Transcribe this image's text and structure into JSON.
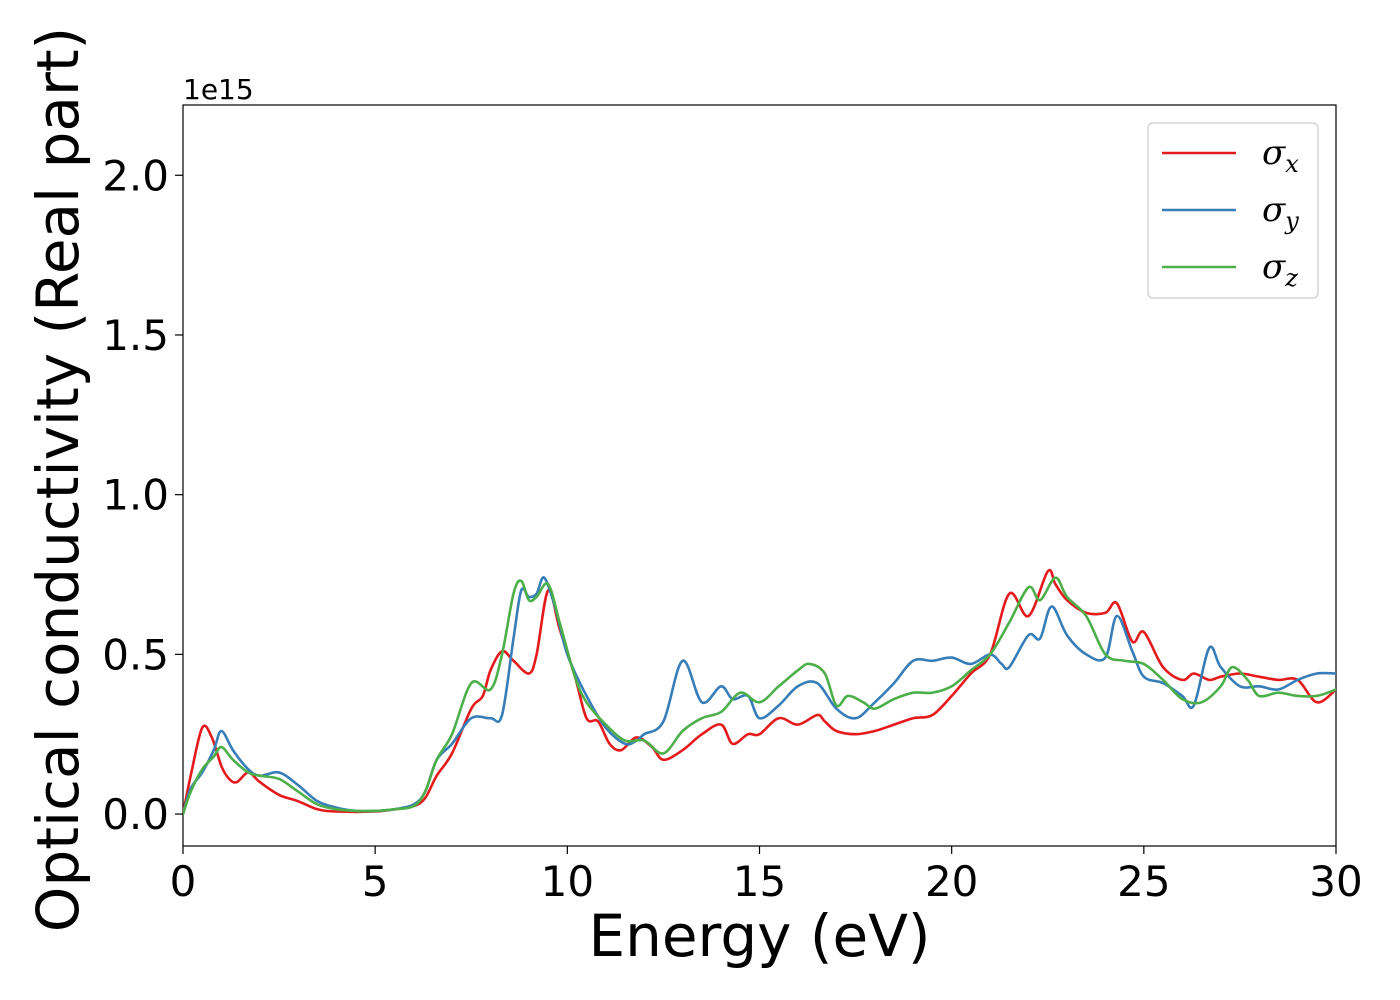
{
  "chart_data": {
    "type": "line",
    "xlabel": "Energy (eV)",
    "ylabel": "Optical conductivity (Real part)",
    "y_offset_text": "1e15",
    "xlim": [
      0,
      30
    ],
    "ylim": [
      -0.1,
      2.22
    ],
    "x_ticks": [
      0,
      5,
      10,
      15,
      20,
      25,
      30
    ],
    "x_tick_labels": [
      "0",
      "5",
      "10",
      "15",
      "20",
      "25",
      "30"
    ],
    "y_ticks": [
      0.0,
      0.5,
      1.0,
      1.5,
      2.0
    ],
    "y_tick_labels": [
      "0.0",
      "0.5",
      "1.0",
      "1.5",
      "2.0"
    ],
    "grid": false,
    "legend_position": "top-right",
    "series": [
      {
        "name": "σx",
        "symbol": "σ",
        "subscript": "x",
        "color": "#e41a1c",
        "points": [
          [
            0,
            0
          ],
          [
            0.2,
            0.12
          ],
          [
            0.5,
            0.27
          ],
          [
            0.75,
            0.24
          ],
          [
            1.0,
            0.15
          ],
          [
            1.2,
            0.11
          ],
          [
            1.4,
            0.1
          ],
          [
            1.7,
            0.13
          ],
          [
            2.0,
            0.1
          ],
          [
            2.5,
            0.06
          ],
          [
            3.0,
            0.04
          ],
          [
            3.5,
            0.015
          ],
          [
            4.0,
            0.008
          ],
          [
            5.0,
            0.008
          ],
          [
            5.5,
            0.015
          ],
          [
            6.0,
            0.025
          ],
          [
            6.3,
            0.05
          ],
          [
            6.6,
            0.12
          ],
          [
            7.0,
            0.19
          ],
          [
            7.5,
            0.33
          ],
          [
            7.8,
            0.37
          ],
          [
            8.0,
            0.45
          ],
          [
            8.3,
            0.51
          ],
          [
            8.6,
            0.48
          ],
          [
            9.0,
            0.44
          ],
          [
            9.2,
            0.5
          ],
          [
            9.5,
            0.7
          ],
          [
            9.8,
            0.58
          ],
          [
            10.2,
            0.43
          ],
          [
            10.5,
            0.3
          ],
          [
            10.8,
            0.29
          ],
          [
            11.1,
            0.22
          ],
          [
            11.4,
            0.2
          ],
          [
            11.8,
            0.24
          ],
          [
            12.2,
            0.21
          ],
          [
            12.5,
            0.17
          ],
          [
            13.0,
            0.2
          ],
          [
            13.5,
            0.25
          ],
          [
            14.0,
            0.28
          ],
          [
            14.3,
            0.22
          ],
          [
            14.7,
            0.25
          ],
          [
            15.0,
            0.25
          ],
          [
            15.5,
            0.3
          ],
          [
            16.0,
            0.28
          ],
          [
            16.5,
            0.31
          ],
          [
            16.7,
            0.29
          ],
          [
            17.0,
            0.26
          ],
          [
            17.5,
            0.25
          ],
          [
            18.0,
            0.26
          ],
          [
            18.5,
            0.28
          ],
          [
            19.0,
            0.3
          ],
          [
            19.5,
            0.31
          ],
          [
            20.0,
            0.37
          ],
          [
            20.5,
            0.44
          ],
          [
            21.0,
            0.5
          ],
          [
            21.5,
            0.69
          ],
          [
            22.0,
            0.62
          ],
          [
            22.5,
            0.76
          ],
          [
            22.7,
            0.72
          ],
          [
            23.0,
            0.67
          ],
          [
            23.5,
            0.63
          ],
          [
            24.0,
            0.63
          ],
          [
            24.3,
            0.66
          ],
          [
            24.7,
            0.54
          ],
          [
            25.0,
            0.57
          ],
          [
            25.5,
            0.46
          ],
          [
            26.0,
            0.42
          ],
          [
            26.3,
            0.44
          ],
          [
            26.7,
            0.42
          ],
          [
            27.0,
            0.43
          ],
          [
            27.5,
            0.44
          ],
          [
            28.0,
            0.43
          ],
          [
            28.5,
            0.42
          ],
          [
            29.0,
            0.42
          ],
          [
            29.5,
            0.35
          ],
          [
            30.0,
            0.39
          ]
        ]
      },
      {
        "name": "σy",
        "symbol": "σ",
        "subscript": "y",
        "color": "#377eb8",
        "points": [
          [
            0,
            0
          ],
          [
            0.2,
            0.08
          ],
          [
            0.5,
            0.13
          ],
          [
            0.8,
            0.2
          ],
          [
            1.0,
            0.26
          ],
          [
            1.3,
            0.2
          ],
          [
            1.7,
            0.14
          ],
          [
            2.0,
            0.12
          ],
          [
            2.5,
            0.13
          ],
          [
            3.0,
            0.09
          ],
          [
            3.5,
            0.04
          ],
          [
            4.0,
            0.02
          ],
          [
            4.5,
            0.01
          ],
          [
            5.0,
            0.01
          ],
          [
            5.5,
            0.015
          ],
          [
            6.0,
            0.03
          ],
          [
            6.3,
            0.07
          ],
          [
            6.6,
            0.17
          ],
          [
            7.0,
            0.22
          ],
          [
            7.5,
            0.3
          ],
          [
            8.0,
            0.3
          ],
          [
            8.3,
            0.31
          ],
          [
            8.6,
            0.55
          ],
          [
            8.8,
            0.7
          ],
          [
            9.0,
            0.68
          ],
          [
            9.2,
            0.69
          ],
          [
            9.4,
            0.74
          ],
          [
            9.7,
            0.64
          ],
          [
            10.0,
            0.5
          ],
          [
            10.5,
            0.37
          ],
          [
            11.0,
            0.27
          ],
          [
            11.5,
            0.22
          ],
          [
            11.8,
            0.23
          ],
          [
            12.0,
            0.25
          ],
          [
            12.5,
            0.29
          ],
          [
            13.0,
            0.48
          ],
          [
            13.5,
            0.35
          ],
          [
            14.0,
            0.4
          ],
          [
            14.3,
            0.36
          ],
          [
            14.7,
            0.37
          ],
          [
            15.0,
            0.3
          ],
          [
            15.5,
            0.34
          ],
          [
            16.0,
            0.4
          ],
          [
            16.5,
            0.41
          ],
          [
            17.0,
            0.33
          ],
          [
            17.5,
            0.3
          ],
          [
            18.0,
            0.35
          ],
          [
            18.5,
            0.41
          ],
          [
            19.0,
            0.48
          ],
          [
            19.5,
            0.48
          ],
          [
            20.0,
            0.49
          ],
          [
            20.5,
            0.47
          ],
          [
            21.0,
            0.5
          ],
          [
            21.3,
            0.47
          ],
          [
            21.5,
            0.46
          ],
          [
            22.0,
            0.56
          ],
          [
            22.3,
            0.55
          ],
          [
            22.6,
            0.65
          ],
          [
            23.0,
            0.56
          ],
          [
            23.5,
            0.5
          ],
          [
            24.0,
            0.49
          ],
          [
            24.3,
            0.62
          ],
          [
            24.7,
            0.51
          ],
          [
            25.0,
            0.43
          ],
          [
            25.5,
            0.41
          ],
          [
            26.0,
            0.37
          ],
          [
            26.3,
            0.34
          ],
          [
            26.7,
            0.52
          ],
          [
            27.0,
            0.46
          ],
          [
            27.5,
            0.4
          ],
          [
            28.0,
            0.4
          ],
          [
            28.5,
            0.39
          ],
          [
            29.0,
            0.42
          ],
          [
            29.5,
            0.44
          ],
          [
            30.0,
            0.44
          ]
        ]
      },
      {
        "name": "σz",
        "symbol": "σ",
        "subscript": "z",
        "color": "#4daf4a",
        "points": [
          [
            0,
            0
          ],
          [
            0.2,
            0.07
          ],
          [
            0.5,
            0.14
          ],
          [
            0.8,
            0.18
          ],
          [
            1.0,
            0.21
          ],
          [
            1.3,
            0.17
          ],
          [
            1.7,
            0.13
          ],
          [
            2.0,
            0.12
          ],
          [
            2.5,
            0.11
          ],
          [
            3.0,
            0.07
          ],
          [
            3.5,
            0.03
          ],
          [
            4.0,
            0.015
          ],
          [
            4.5,
            0.01
          ],
          [
            5.0,
            0.01
          ],
          [
            5.5,
            0.015
          ],
          [
            6.0,
            0.025
          ],
          [
            6.3,
            0.07
          ],
          [
            6.6,
            0.17
          ],
          [
            7.0,
            0.25
          ],
          [
            7.5,
            0.41
          ],
          [
            8.0,
            0.39
          ],
          [
            8.3,
            0.5
          ],
          [
            8.6,
            0.69
          ],
          [
            8.8,
            0.73
          ],
          [
            9.0,
            0.67
          ],
          [
            9.2,
            0.68
          ],
          [
            9.5,
            0.72
          ],
          [
            9.8,
            0.6
          ],
          [
            10.2,
            0.43
          ],
          [
            10.5,
            0.35
          ],
          [
            11.0,
            0.28
          ],
          [
            11.5,
            0.23
          ],
          [
            12.0,
            0.23
          ],
          [
            12.5,
            0.19
          ],
          [
            13.0,
            0.26
          ],
          [
            13.5,
            0.3
          ],
          [
            14.0,
            0.32
          ],
          [
            14.5,
            0.38
          ],
          [
            15.0,
            0.35
          ],
          [
            15.5,
            0.4
          ],
          [
            16.0,
            0.45
          ],
          [
            16.3,
            0.47
          ],
          [
            16.7,
            0.44
          ],
          [
            17.0,
            0.34
          ],
          [
            17.3,
            0.37
          ],
          [
            17.7,
            0.35
          ],
          [
            18.0,
            0.33
          ],
          [
            18.5,
            0.36
          ],
          [
            19.0,
            0.38
          ],
          [
            19.5,
            0.38
          ],
          [
            20.0,
            0.4
          ],
          [
            20.5,
            0.45
          ],
          [
            21.0,
            0.5
          ],
          [
            21.5,
            0.6
          ],
          [
            22.0,
            0.71
          ],
          [
            22.3,
            0.67
          ],
          [
            22.7,
            0.74
          ],
          [
            23.0,
            0.68
          ],
          [
            23.5,
            0.62
          ],
          [
            24.0,
            0.5
          ],
          [
            24.5,
            0.48
          ],
          [
            25.0,
            0.47
          ],
          [
            25.5,
            0.42
          ],
          [
            26.0,
            0.36
          ],
          [
            26.5,
            0.35
          ],
          [
            27.0,
            0.4
          ],
          [
            27.3,
            0.46
          ],
          [
            27.7,
            0.42
          ],
          [
            28.0,
            0.37
          ],
          [
            28.5,
            0.38
          ],
          [
            29.0,
            0.37
          ],
          [
            29.5,
            0.37
          ],
          [
            30.0,
            0.39
          ]
        ]
      }
    ]
  }
}
